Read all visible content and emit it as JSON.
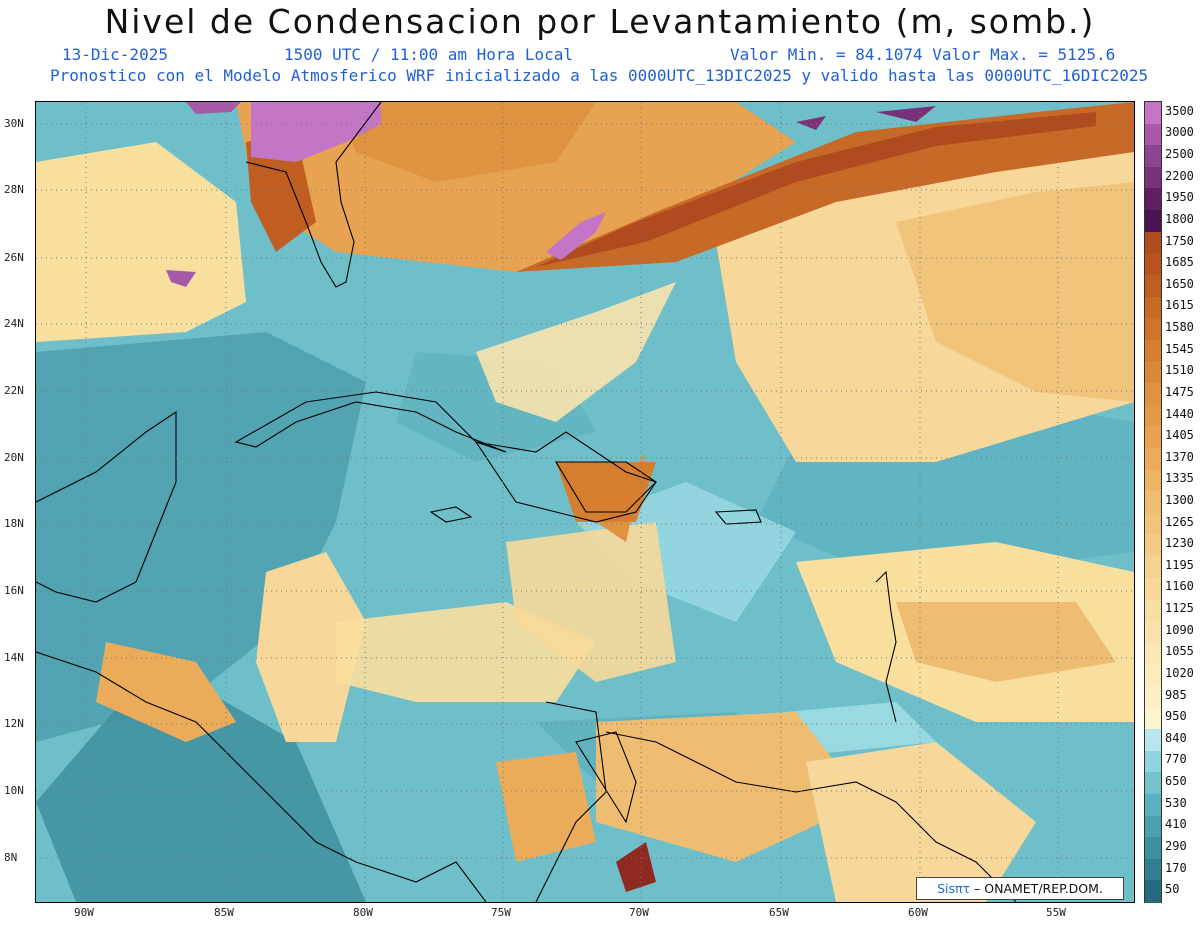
{
  "header": {
    "title": "Nivel de Condensacion por Levantamiento (m, somb.)",
    "date": "13-Dic-2025",
    "time": "1500 UTC / 11:00 am Hora Local",
    "min_max": "Valor Min. = 84.1074  Valor Max. = 5125.6",
    "model_info": "Pronostico con el Modelo Atmosferico WRF inicializado a las 0000UTC_13DIC2025 y valido hasta las  0000UTC_16DIC2025"
  },
  "map": {
    "lat_labels": [
      "30N",
      "28N",
      "26N",
      "24N",
      "22N",
      "20N",
      "18N",
      "16N",
      "14N",
      "12N",
      "10N",
      "8N"
    ],
    "lon_labels": [
      "90W",
      "85W",
      "80W",
      "75W",
      "70W",
      "65W",
      "60W",
      "55W"
    ]
  },
  "colorbar": {
    "labels": [
      "3500",
      "3000",
      "2500",
      "2200",
      "1950",
      "1800",
      "1750",
      "1685",
      "1650",
      "1615",
      "1580",
      "1545",
      "1510",
      "1475",
      "1440",
      "1405",
      "1370",
      "1335",
      "1300",
      "1265",
      "1230",
      "1195",
      "1160",
      "1125",
      "1090",
      "1055",
      "1020",
      "985",
      "950",
      "840",
      "770",
      "650",
      "530",
      "410",
      "290",
      "170",
      "50"
    ],
    "colors": [
      "#c376c6",
      "#a65aa8",
      "#8e4591",
      "#78327a",
      "#5e1f63",
      "#4a1450",
      "#b04a1f",
      "#b8531f",
      "#c05e22",
      "#c86a27",
      "#cf732a",
      "#d57e30",
      "#da8838",
      "#df9240",
      "#e39a48",
      "#e7a352",
      "#eaac5b",
      "#edb466",
      "#efbd71",
      "#f1c47b",
      "#f3cb86",
      "#f5d290",
      "#f7d89a",
      "#f8dea4",
      "#f9e3ad",
      "#fae7b5",
      "#fbebbd",
      "#fcefc5",
      "#fdf3cd",
      "#b9e6ec",
      "#8fd3dc",
      "#73c2cd",
      "#5bb1be",
      "#4aa0ae",
      "#3d909f",
      "#317e8e",
      "#256b7d"
    ]
  },
  "credit": {
    "sis": "Sisπτ",
    "org": " – ONAMET/REP.DOM."
  }
}
